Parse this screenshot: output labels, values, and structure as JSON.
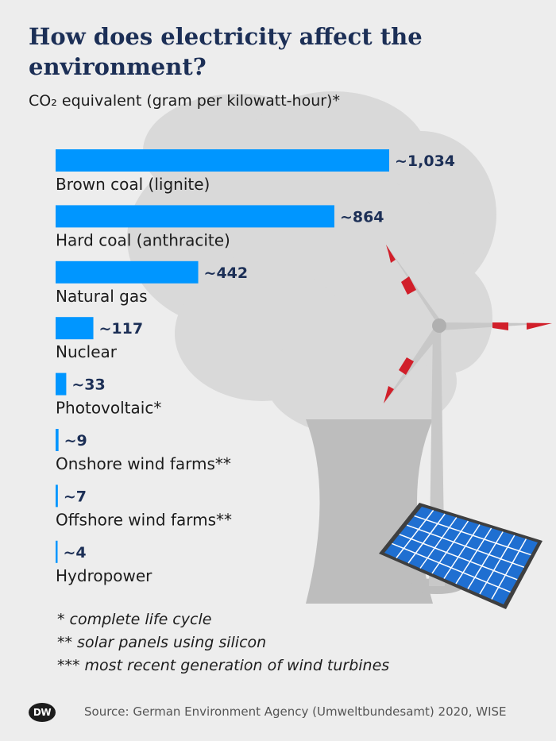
{
  "title": "How does electricity affect the environment?",
  "subtitle": "CO₂ equivalent (gram per kilowatt-hour)*",
  "chart_data": {
    "type": "bar",
    "orientation": "horizontal",
    "categories": [
      "Brown coal (lignite)",
      "Hard coal (anthracite)",
      "Natural gas",
      "Nuclear",
      "Photovoltaic*",
      "Onshore wind farms**",
      "Offshore wind farms**",
      "Hydropower"
    ],
    "values": [
      1034,
      864,
      442,
      117,
      33,
      9,
      7,
      4
    ],
    "value_labels": [
      "~1,034",
      "~864",
      "~442",
      "~117",
      "~33",
      "~9",
      "~7",
      "~4"
    ],
    "bar_color": "#0096ff",
    "value_color": "#1c2f56"
  },
  "notes": [
    "* complete life cycle",
    "** solar panels using silicon",
    "*** most recent generation of wind turbines"
  ],
  "source": "Source: German Environment Agency (Umweltbundesamt) 2020, WISE",
  "logo_text": "DW",
  "colors": {
    "background": "#ededed",
    "smoke": "#d9d9d9",
    "cooling_tower": "#bfbfbf",
    "turbine": "#c8c8c8",
    "turbine_stripe": "#d11f2a",
    "solar_panel": "#1f6fd1",
    "title": "#1c2f56"
  }
}
